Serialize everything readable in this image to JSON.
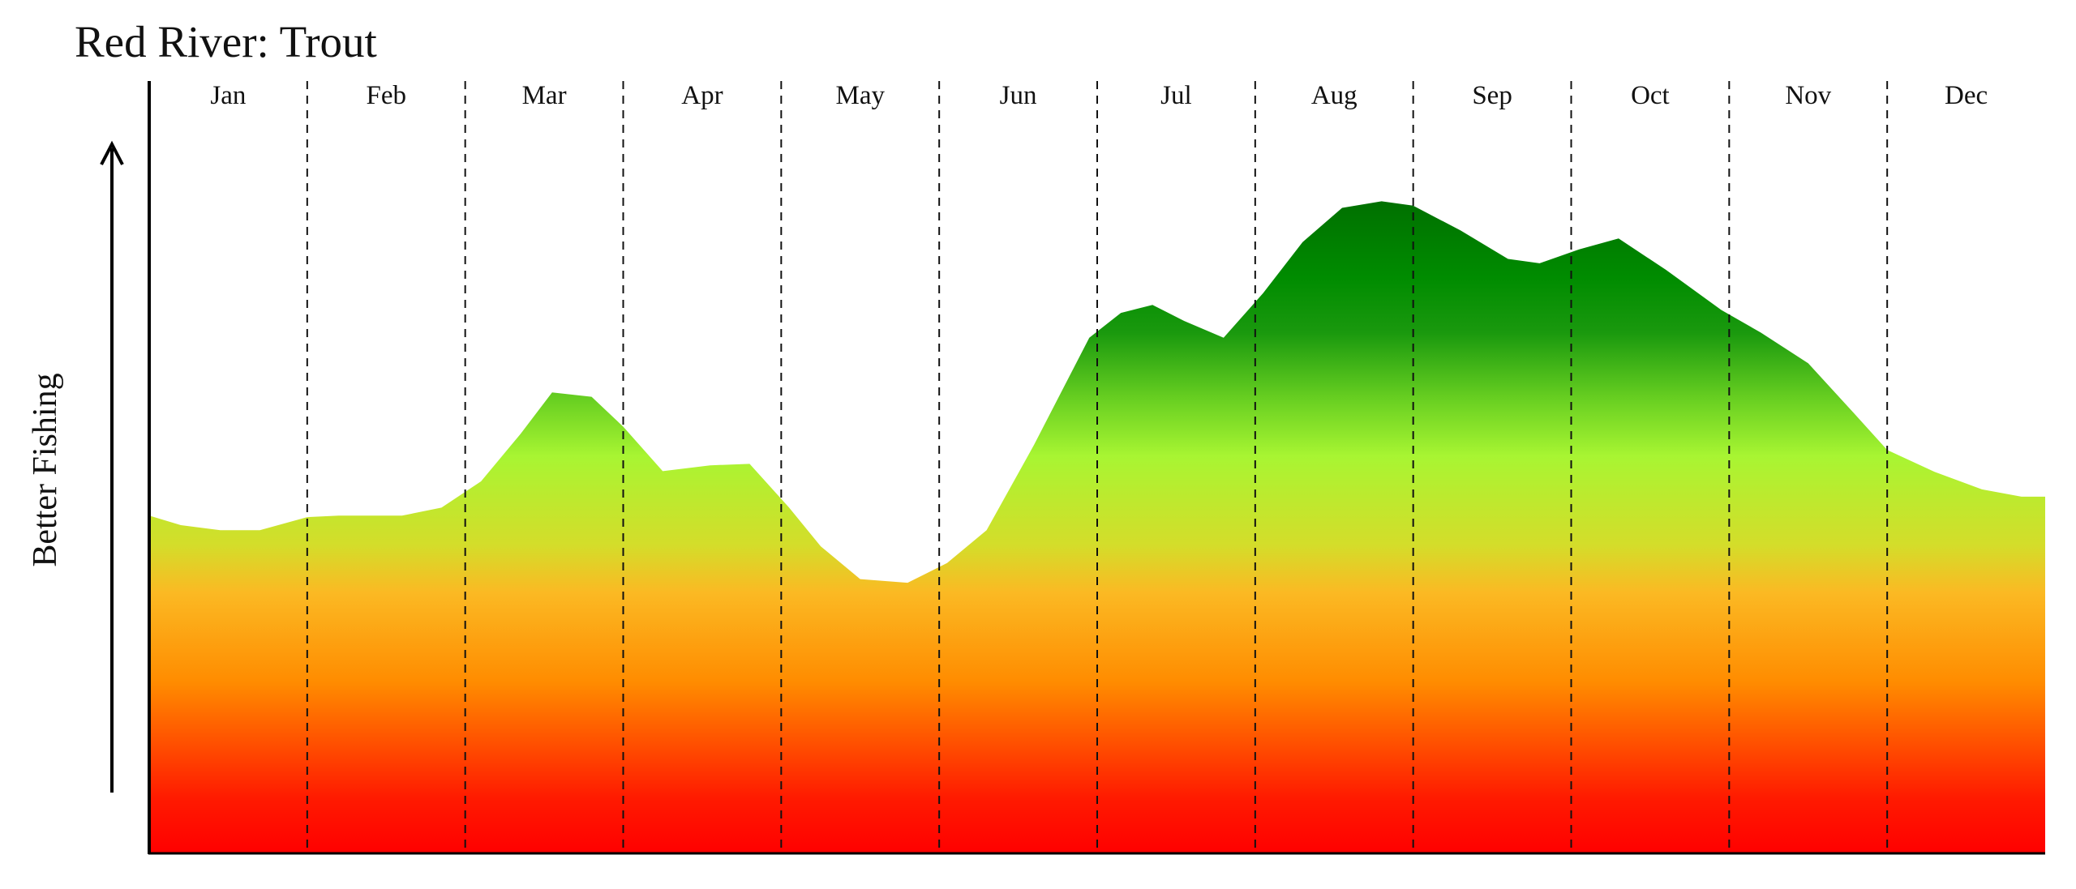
{
  "chart_data": {
    "type": "area",
    "title": "Red River: Trout",
    "xlabel": "",
    "ylabel": "Better Fishing",
    "months": [
      "Jan",
      "Feb",
      "Mar",
      "Apr",
      "May",
      "Jun",
      "Jul",
      "Aug",
      "Sep",
      "Oct",
      "Nov",
      "Dec"
    ],
    "x_range": [
      0,
      12
    ],
    "ylim": [
      0,
      100
    ],
    "y_axis_ticks": false,
    "gridlines": "dashed vertical month separators",
    "fill": "vertical gradient red (low) to orange, yellow-green, dark green (high)",
    "x": [
      0,
      0.2,
      0.45,
      0.7,
      1.0,
      1.2,
      1.6,
      1.85,
      2.1,
      2.35,
      2.55,
      2.8,
      3.0,
      3.25,
      3.55,
      3.8,
      4.05,
      4.25,
      4.5,
      4.8,
      5.05,
      5.3,
      5.6,
      5.95,
      6.15,
      6.35,
      6.55,
      6.8,
      7.05,
      7.3,
      7.55,
      7.8,
      8.0,
      8.3,
      8.6,
      8.8,
      9.05,
      9.3,
      9.6,
      9.95,
      10.2,
      10.5,
      10.8,
      11.0,
      11.3,
      11.6,
      11.85
    ]
  },
  "series_values": [
    46.3,
    45.0,
    44.3,
    44.3,
    46.1,
    46.3,
    46.3,
    47.4,
    51.0,
    57.5,
    63.2,
    62.6,
    58.5,
    52.4,
    53.2,
    53.4,
    47.4,
    42.1,
    37.6,
    37.1,
    39.8,
    44.3,
    56.0,
    70.7,
    74.1,
    75.2,
    73.0,
    70.7,
    76.8,
    83.8,
    88.5,
    89.4,
    88.8,
    85.4,
    81.5,
    80.9,
    82.8,
    84.3,
    80.0,
    74.5,
    71.4,
    67.2,
    60.1,
    55.3,
    52.3,
    49.9,
    48.9
  ],
  "colors": {
    "gradient_stops": [
      {
        "offset": 0.0,
        "color": "#ff0000"
      },
      {
        "offset": 0.08,
        "color": "#ff1a00"
      },
      {
        "offset": 0.25,
        "color": "#ff8c00"
      },
      {
        "offset": 0.38,
        "color": "#fbb923"
      },
      {
        "offset": 0.45,
        "color": "#d4dd2a"
      },
      {
        "offset": 0.58,
        "color": "#a8f532"
      },
      {
        "offset": 0.66,
        "color": "#6bd122"
      },
      {
        "offset": 0.76,
        "color": "#1a990e"
      },
      {
        "offset": 0.84,
        "color": "#008c00"
      },
      {
        "offset": 1.0,
        "color": "#006400"
      }
    ],
    "axis": "#000000",
    "gridline": "#111111"
  }
}
